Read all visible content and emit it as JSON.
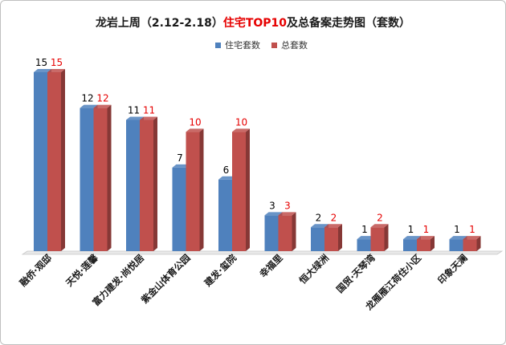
{
  "title_part1": "龙岩上周（2.12-2.18）",
  "title_part2": "住宅TOP10",
  "title_part3": "及总备案走势图（套数）",
  "colors": {
    "residential": "#4f81bd",
    "total": "#c0504d",
    "total_label": "#e60000",
    "res_label": "#000000"
  },
  "chart_data": {
    "type": "bar",
    "title": "龙岩上周（2.12-2.18）住宅TOP10及总备案走势图（套数）",
    "categories": [
      "融侨·观邸",
      "天悦·莲馨",
      "富力建发·尚悦居",
      "紫金山体育公园",
      "建发·玺院",
      "幸福里",
      "恒大绿洲",
      "国贸·天琴湾",
      "龙雁雁江荷住小区",
      "印象天澜"
    ],
    "series": [
      {
        "name": "住宅套数",
        "values": [
          15,
          12,
          11,
          7,
          6,
          3,
          2,
          1,
          1,
          1
        ]
      },
      {
        "name": "总套数",
        "values": [
          15,
          12,
          11,
          10,
          10,
          3,
          2,
          2,
          1,
          1
        ]
      }
    ],
    "ylim": [
      0,
      16
    ],
    "grid": false,
    "legend_position": "top-center",
    "three_d": true
  }
}
